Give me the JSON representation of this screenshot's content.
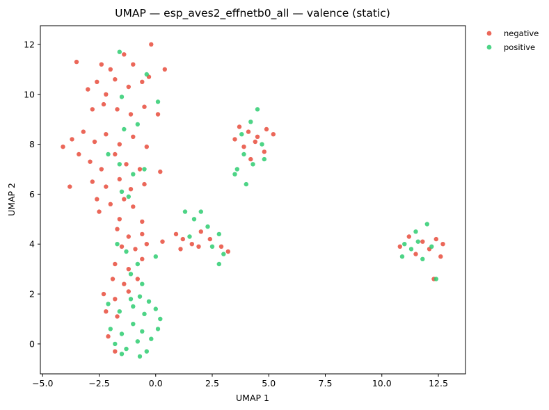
{
  "chart_data": {
    "type": "scatter",
    "title": "UMAP — esp_aves2_effnetb0_all — valence (static)",
    "xlabel": "UMAP 1",
    "ylabel": "UMAP 2",
    "xlim": [
      -5.1,
      13.7
    ],
    "ylim": [
      -1.2,
      12.75
    ],
    "xticks": [
      -5.0,
      -2.5,
      0.0,
      2.5,
      5.0,
      7.5,
      10.0,
      12.5
    ],
    "xtick_labels": [
      "−5.0",
      "−2.5",
      "0.0",
      "2.5",
      "5.0",
      "7.5",
      "10.0",
      "12.5"
    ],
    "yticks": [
      0,
      2,
      4,
      6,
      8,
      10,
      12
    ],
    "ytick_labels": [
      "0",
      "2",
      "4",
      "6",
      "8",
      "10",
      "12"
    ],
    "grid": false,
    "legend_position": "outside-top-right",
    "series": [
      {
        "name": "negative",
        "color": "#e74c3c",
        "points": [
          [
            -2.4,
            11.2
          ],
          [
            -2.0,
            11.0
          ],
          [
            -1.4,
            11.6
          ],
          [
            -1.0,
            11.2
          ],
          [
            -3.5,
            11.3
          ],
          [
            -0.2,
            12.0
          ],
          [
            0.4,
            11.0
          ],
          [
            -3.0,
            10.2
          ],
          [
            -2.6,
            10.5
          ],
          [
            -2.2,
            10.0
          ],
          [
            -1.8,
            10.6
          ],
          [
            -1.2,
            10.3
          ],
          [
            -0.6,
            10.5
          ],
          [
            -0.3,
            10.7
          ],
          [
            -2.8,
            9.4
          ],
          [
            -2.3,
            9.6
          ],
          [
            -1.7,
            9.4
          ],
          [
            -1.1,
            9.2
          ],
          [
            -0.5,
            9.5
          ],
          [
            0.1,
            9.2
          ],
          [
            -3.7,
            8.2
          ],
          [
            -3.2,
            8.5
          ],
          [
            -2.7,
            8.1
          ],
          [
            -2.2,
            8.4
          ],
          [
            -1.6,
            8.0
          ],
          [
            -1.0,
            8.3
          ],
          [
            -0.4,
            7.9
          ],
          [
            -4.1,
            7.9
          ],
          [
            -3.4,
            7.6
          ],
          [
            -2.9,
            7.3
          ],
          [
            -2.4,
            7.0
          ],
          [
            -1.8,
            7.6
          ],
          [
            -1.3,
            7.2
          ],
          [
            -0.7,
            7.0
          ],
          [
            0.2,
            6.9
          ],
          [
            -3.8,
            6.3
          ],
          [
            -2.8,
            6.5
          ],
          [
            -2.2,
            6.3
          ],
          [
            -1.6,
            6.6
          ],
          [
            -1.1,
            6.2
          ],
          [
            -0.5,
            6.4
          ],
          [
            -2.6,
            5.8
          ],
          [
            -2.0,
            5.6
          ],
          [
            -1.4,
            5.8
          ],
          [
            -1.0,
            5.5
          ],
          [
            -2.5,
            5.3
          ],
          [
            -1.6,
            5.0
          ],
          [
            -0.6,
            4.9
          ],
          [
            -1.7,
            4.6
          ],
          [
            -1.2,
            4.3
          ],
          [
            -0.6,
            4.4
          ],
          [
            -1.5,
            3.9
          ],
          [
            -0.9,
            3.8
          ],
          [
            -0.4,
            4.0
          ],
          [
            -1.8,
            3.2
          ],
          [
            -1.2,
            3.0
          ],
          [
            -0.6,
            3.4
          ],
          [
            -1.9,
            2.6
          ],
          [
            -1.4,
            2.4
          ],
          [
            -0.8,
            2.6
          ],
          [
            -2.3,
            2.0
          ],
          [
            -1.8,
            1.8
          ],
          [
            -1.2,
            2.1
          ],
          [
            -2.2,
            1.3
          ],
          [
            -1.7,
            1.1
          ],
          [
            -2.1,
            0.3
          ],
          [
            -1.8,
            -0.3
          ],
          [
            0.3,
            4.1
          ],
          [
            0.9,
            4.4
          ],
          [
            1.2,
            4.2
          ],
          [
            1.6,
            4.0
          ],
          [
            2.0,
            4.5
          ],
          [
            2.4,
            4.2
          ],
          [
            2.9,
            3.9
          ],
          [
            1.1,
            3.8
          ],
          [
            1.9,
            3.9
          ],
          [
            3.2,
            3.7
          ],
          [
            3.7,
            8.7
          ],
          [
            4.1,
            8.5
          ],
          [
            4.5,
            8.3
          ],
          [
            4.9,
            8.6
          ],
          [
            5.2,
            8.4
          ],
          [
            3.9,
            7.9
          ],
          [
            4.4,
            8.1
          ],
          [
            4.8,
            7.7
          ],
          [
            3.5,
            8.2
          ],
          [
            4.2,
            7.4
          ],
          [
            10.8,
            3.9
          ],
          [
            11.2,
            4.3
          ],
          [
            11.5,
            3.6
          ],
          [
            11.8,
            4.1
          ],
          [
            12.1,
            3.8
          ],
          [
            12.4,
            4.2
          ],
          [
            12.6,
            3.5
          ],
          [
            12.7,
            4.0
          ],
          [
            12.3,
            2.6
          ]
        ]
      },
      {
        "name": "positive",
        "color": "#2ecc71",
        "points": [
          [
            -1.6,
            11.7
          ],
          [
            -0.4,
            10.8
          ],
          [
            0.1,
            9.7
          ],
          [
            -1.5,
            9.9
          ],
          [
            -0.8,
            8.8
          ],
          [
            -1.4,
            8.6
          ],
          [
            -2.1,
            7.6
          ],
          [
            -1.6,
            7.2
          ],
          [
            -1.0,
            6.8
          ],
          [
            -0.5,
            7.0
          ],
          [
            -1.5,
            6.1
          ],
          [
            -1.2,
            5.9
          ],
          [
            -1.7,
            4.0
          ],
          [
            -1.3,
            3.7
          ],
          [
            -0.8,
            3.2
          ],
          [
            0.0,
            3.5
          ],
          [
            -1.1,
            2.8
          ],
          [
            -0.6,
            2.4
          ],
          [
            -2.1,
            1.6
          ],
          [
            -1.6,
            1.3
          ],
          [
            -1.0,
            1.5
          ],
          [
            -0.5,
            1.2
          ],
          [
            0.0,
            1.4
          ],
          [
            0.2,
            1.0
          ],
          [
            -2.0,
            0.6
          ],
          [
            -1.5,
            0.4
          ],
          [
            -1.0,
            0.8
          ],
          [
            -0.6,
            0.5
          ],
          [
            -0.2,
            0.2
          ],
          [
            0.1,
            0.6
          ],
          [
            -1.8,
            0.0
          ],
          [
            -1.3,
            -0.2
          ],
          [
            -0.8,
            0.1
          ],
          [
            -0.4,
            -0.3
          ],
          [
            -1.5,
            -0.4
          ],
          [
            -0.7,
            -0.5
          ],
          [
            -1.1,
            1.8
          ],
          [
            -0.7,
            1.9
          ],
          [
            -0.3,
            1.7
          ],
          [
            1.7,
            5.0
          ],
          [
            2.0,
            5.3
          ],
          [
            1.3,
            5.3
          ],
          [
            2.3,
            4.7
          ],
          [
            2.8,
            4.4
          ],
          [
            3.0,
            3.6
          ],
          [
            2.8,
            3.2
          ],
          [
            1.5,
            4.3
          ],
          [
            2.5,
            3.9
          ],
          [
            4.5,
            9.4
          ],
          [
            4.2,
            8.9
          ],
          [
            4.7,
            8.0
          ],
          [
            3.9,
            7.6
          ],
          [
            4.3,
            7.2
          ],
          [
            3.6,
            7.0
          ],
          [
            4.0,
            6.4
          ],
          [
            3.5,
            6.8
          ],
          [
            4.8,
            7.4
          ],
          [
            3.8,
            8.4
          ],
          [
            11.0,
            4.0
          ],
          [
            11.5,
            4.5
          ],
          [
            11.8,
            3.4
          ],
          [
            12.0,
            4.8
          ],
          [
            11.3,
            3.8
          ],
          [
            10.9,
            3.5
          ],
          [
            12.2,
            3.9
          ],
          [
            12.4,
            2.6
          ],
          [
            11.6,
            4.1
          ]
        ]
      }
    ]
  }
}
